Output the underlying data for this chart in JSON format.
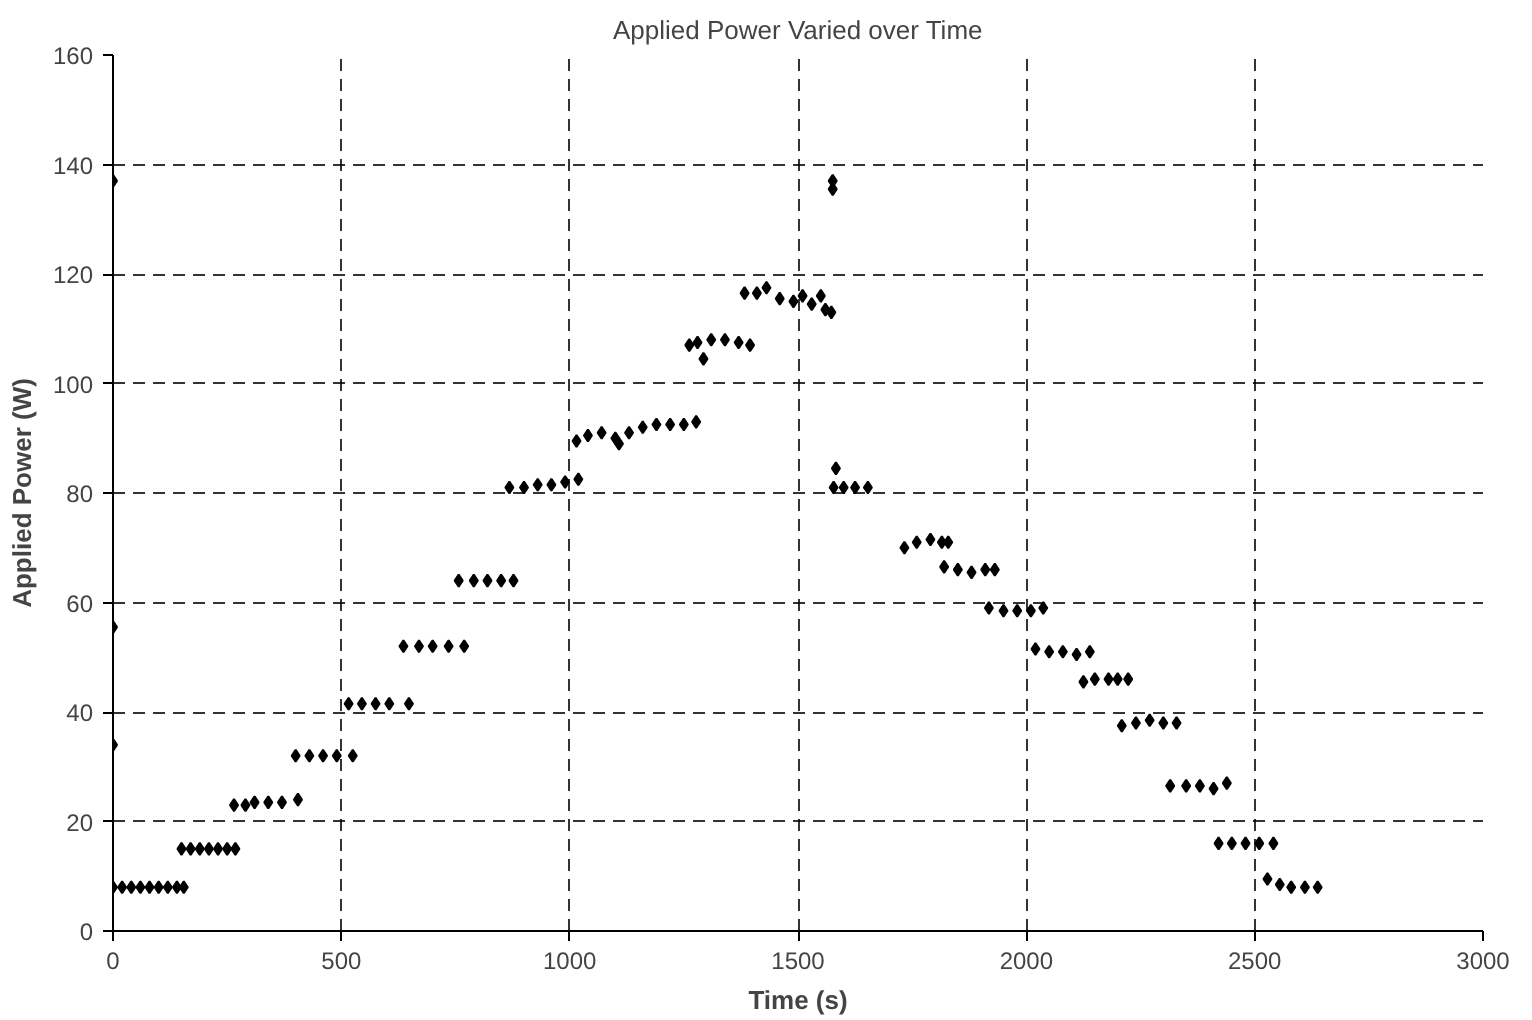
{
  "chart_data": {
    "type": "scatter",
    "title": "Applied Power Varied over Time",
    "xlabel": "Time (s)",
    "ylabel": "Applied Power (W)",
    "xlim": [
      0,
      3000
    ],
    "xticks": [
      0,
      500,
      1000,
      1500,
      2000,
      2500,
      3000
    ],
    "ylim": [
      0,
      160
    ],
    "yticks": [
      0,
      20,
      40,
      60,
      80,
      100,
      120,
      140,
      160
    ],
    "grid": true,
    "marker": "diamond",
    "series": [
      {
        "color": "#000000",
        "x": [
          0,
          0,
          0,
          0,
          20,
          40,
          60,
          80,
          100,
          120,
          140,
          155,
          150,
          170,
          190,
          210,
          230,
          250,
          268,
          265,
          290,
          310,
          340,
          370,
          405,
          400,
          430,
          460,
          490,
          525,
          516,
          545,
          575,
          605,
          648,
          636,
          670,
          700,
          735,
          769,
          757,
          790,
          820,
          850,
          877,
          868,
          900,
          930,
          960,
          990,
          1019,
          1015,
          1040,
          1070,
          1100,
          1108,
          1130,
          1160,
          1190,
          1220,
          1250,
          1277,
          1262,
          1280,
          1293,
          1310,
          1340,
          1370,
          1395,
          1383,
          1410,
          1431,
          1460,
          1490,
          1510,
          1530,
          1550,
          1560,
          1573,
          1576,
          1576,
          1583,
          1578,
          1600,
          1625,
          1653,
          1733,
          1760,
          1790,
          1815,
          1829,
          1820,
          1850,
          1880,
          1910,
          1931,
          1918,
          1950,
          1980,
          2010,
          2037,
          2020,
          2050,
          2080,
          2110,
          2139,
          2125,
          2150,
          2180,
          2200,
          2223,
          2209,
          2240,
          2270,
          2300,
          2329,
          2315,
          2350,
          2380,
          2410,
          2439,
          2421,
          2450,
          2480,
          2510,
          2541,
          2528,
          2555,
          2580,
          2610,
          2638
        ],
        "values": [
          137,
          55.5,
          34,
          8,
          8,
          8,
          8,
          8,
          8,
          8,
          8,
          8,
          15,
          15,
          15,
          15,
          15,
          15,
          15,
          23,
          23,
          23.5,
          23.5,
          23.5,
          24,
          32,
          32,
          32,
          32,
          32,
          41.5,
          41.5,
          41.5,
          41.5,
          41.5,
          52,
          52,
          52,
          52,
          52,
          64,
          64,
          64,
          64,
          64,
          81,
          81,
          81.5,
          81.5,
          82,
          82.5,
          89.5,
          90.5,
          91,
          90,
          89,
          91,
          92,
          92.5,
          92.5,
          92.5,
          93,
          107,
          107.5,
          104.5,
          108,
          108,
          107.5,
          107,
          116.5,
          116.5,
          117.5,
          115.5,
          115,
          116,
          114.5,
          116,
          113.5,
          113,
          137,
          135.5,
          84.5,
          81,
          81,
          81,
          81,
          70,
          71,
          71.5,
          71,
          71,
          66.5,
          66,
          65.5,
          66,
          66,
          59,
          58.5,
          58.5,
          58.5,
          59,
          51.5,
          51,
          51,
          50.5,
          51,
          45.5,
          46,
          46,
          46,
          46,
          37.5,
          38,
          38.5,
          38,
          38,
          26.5,
          26.5,
          26.5,
          26,
          27,
          16,
          16,
          16,
          16,
          16,
          9.5,
          8.5,
          8,
          8,
          8
        ]
      }
    ]
  }
}
